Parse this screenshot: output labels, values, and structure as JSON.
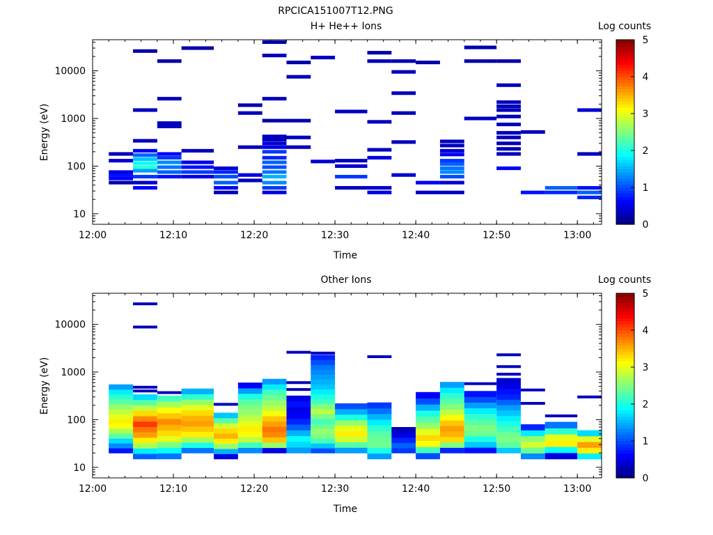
{
  "page_title": "RPCICA151007T12.PNG",
  "colors": {
    "axis": "#000000",
    "background": "#ffffff"
  },
  "chart_data": [
    {
      "type": "heatmap",
      "title": "H+ He++ Ions",
      "xlabel": "Time",
      "ylabel": "Energy (eV)",
      "colorbar": {
        "label": "Log counts",
        "min": 0,
        "max": 5,
        "ticks": [
          "0",
          "1",
          "2",
          "3",
          "4",
          "5"
        ],
        "colormap": "jet"
      },
      "x_range": [
        "12:00",
        "13:03"
      ],
      "x_ticks": [
        "12:00",
        "12:10",
        "12:20",
        "12:30",
        "12:40",
        "12:50",
        "13:00"
      ],
      "y_scale": "log",
      "y_range": [
        6,
        45000
      ],
      "y_ticks": [
        "10",
        "100",
        "1000",
        "10000"
      ],
      "time_bins": [
        [
          "12:02",
          "12:05"
        ],
        [
          "12:05",
          "12:08"
        ],
        [
          "12:08",
          "12:11"
        ],
        [
          "12:11",
          "12:15"
        ],
        [
          "12:15",
          "12:18"
        ],
        [
          "12:18",
          "12:21"
        ],
        [
          "12:21",
          "12:24"
        ],
        [
          "12:24",
          "12:27"
        ],
        [
          "12:27",
          "12:30"
        ],
        [
          "12:30",
          "12:34"
        ],
        [
          "12:34",
          "12:37"
        ],
        [
          "12:37",
          "12:40"
        ],
        [
          "12:40",
          "12:43"
        ],
        [
          "12:43",
          "12:46"
        ],
        [
          "12:46",
          "12:50"
        ],
        [
          "12:50",
          "12:53"
        ],
        [
          "12:53",
          "12:56"
        ],
        [
          "12:56",
          "13:00"
        ],
        [
          "13:00",
          "13:03"
        ]
      ],
      "cells": [
        [
          0,
          45,
          0.2
        ],
        [
          0,
          55,
          0.6
        ],
        [
          0,
          65,
          0.7
        ],
        [
          0,
          75,
          0.5
        ],
        [
          0,
          130,
          0.4
        ],
        [
          0,
          180,
          0.3
        ],
        [
          1,
          35,
          0.6
        ],
        [
          1,
          45,
          0.4
        ],
        [
          1,
          60,
          0.9
        ],
        [
          1,
          80,
          1.4
        ],
        [
          1,
          95,
          2.1
        ],
        [
          1,
          115,
          1.9
        ],
        [
          1,
          140,
          1.6
        ],
        [
          1,
          170,
          1.1
        ],
        [
          1,
          210,
          0.6
        ],
        [
          1,
          340,
          0.3
        ],
        [
          1,
          1500,
          0.3
        ],
        [
          1,
          26000,
          0.2
        ],
        [
          2,
          60,
          0.7
        ],
        [
          2,
          75,
          1.1
        ],
        [
          2,
          95,
          1.2
        ],
        [
          2,
          120,
          1.3
        ],
        [
          2,
          150,
          0.9
        ],
        [
          2,
          180,
          0.6
        ],
        [
          2,
          680,
          0.3
        ],
        [
          2,
          800,
          0.3
        ],
        [
          2,
          2600,
          0.3
        ],
        [
          2,
          16000,
          0.2
        ],
        [
          3,
          60,
          0.5
        ],
        [
          3,
          75,
          0.9
        ],
        [
          3,
          95,
          0.7
        ],
        [
          3,
          120,
          0.5
        ],
        [
          3,
          210,
          0.3
        ],
        [
          3,
          30000,
          0.2
        ],
        [
          4,
          28,
          0.3
        ],
        [
          4,
          35,
          0.6
        ],
        [
          4,
          45,
          1.1
        ],
        [
          4,
          60,
          1.0
        ],
        [
          4,
          75,
          0.8
        ],
        [
          4,
          90,
          0.4
        ],
        [
          5,
          50,
          0.3
        ],
        [
          5,
          65,
          0.5
        ],
        [
          5,
          250,
          0.3
        ],
        [
          5,
          1300,
          0.3
        ],
        [
          5,
          1900,
          0.2
        ],
        [
          6,
          28,
          0.5
        ],
        [
          6,
          35,
          0.9
        ],
        [
          6,
          45,
          1.3
        ],
        [
          6,
          60,
          1.5
        ],
        [
          6,
          75,
          1.2
        ],
        [
          6,
          95,
          1.0
        ],
        [
          6,
          120,
          1.1
        ],
        [
          6,
          150,
          0.8
        ],
        [
          6,
          200,
          0.9
        ],
        [
          6,
          250,
          0.5
        ],
        [
          6,
          300,
          0.4
        ],
        [
          6,
          360,
          0.3
        ],
        [
          6,
          420,
          0.3
        ],
        [
          6,
          900,
          0.2
        ],
        [
          6,
          2600,
          0.3
        ],
        [
          6,
          21000,
          0.3
        ],
        [
          6,
          40000,
          0.2
        ],
        [
          7,
          250,
          0.3
        ],
        [
          7,
          400,
          0.3
        ],
        [
          7,
          900,
          0.2
        ],
        [
          7,
          7500,
          0.3
        ],
        [
          7,
          15000,
          0.2
        ],
        [
          8,
          125,
          0.4
        ],
        [
          8,
          19000,
          0.3
        ],
        [
          9,
          35,
          0.3
        ],
        [
          9,
          60,
          0.9
        ],
        [
          9,
          100,
          0.4
        ],
        [
          9,
          130,
          0.3
        ],
        [
          9,
          1400,
          0.3
        ],
        [
          10,
          28,
          0.5
        ],
        [
          10,
          35,
          0.4
        ],
        [
          10,
          150,
          0.5
        ],
        [
          10,
          220,
          0.3
        ],
        [
          10,
          850,
          0.3
        ],
        [
          10,
          16000,
          0.3
        ],
        [
          10,
          24000,
          0.2
        ],
        [
          11,
          65,
          0.4
        ],
        [
          11,
          320,
          0.3
        ],
        [
          11,
          1300,
          0.3
        ],
        [
          11,
          3400,
          0.3
        ],
        [
          11,
          9500,
          0.3
        ],
        [
          11,
          16000,
          0.3
        ],
        [
          12,
          28,
          0.3
        ],
        [
          12,
          45,
          0.6
        ],
        [
          12,
          15000,
          0.2
        ],
        [
          13,
          28,
          0.3
        ],
        [
          13,
          45,
          0.4
        ],
        [
          13,
          60,
          1.0
        ],
        [
          13,
          75,
          1.3
        ],
        [
          13,
          90,
          1.2
        ],
        [
          13,
          110,
          1.1
        ],
        [
          13,
          130,
          0.9
        ],
        [
          13,
          175,
          0.6
        ],
        [
          13,
          210,
          0.4
        ],
        [
          13,
          270,
          0.3
        ],
        [
          13,
          330,
          0.3
        ],
        [
          14,
          1000,
          0.3
        ],
        [
          14,
          16000,
          0.2
        ],
        [
          14,
          31000,
          0.2
        ],
        [
          15,
          90,
          0.6
        ],
        [
          15,
          180,
          0.3
        ],
        [
          15,
          230,
          0.3
        ],
        [
          15,
          300,
          0.3
        ],
        [
          15,
          400,
          0.3
        ],
        [
          15,
          500,
          0.3
        ],
        [
          15,
          750,
          0.3
        ],
        [
          15,
          1100,
          0.3
        ],
        [
          15,
          1500,
          0.3
        ],
        [
          15,
          1800,
          0.3
        ],
        [
          15,
          2200,
          0.3
        ],
        [
          15,
          5000,
          0.3
        ],
        [
          15,
          16000,
          0.2
        ],
        [
          16,
          28,
          0.7
        ],
        [
          16,
          520,
          0.3
        ],
        [
          17,
          28,
          0.8
        ],
        [
          17,
          35,
          1.1
        ],
        [
          18,
          22,
          0.8
        ],
        [
          18,
          28,
          1.1
        ],
        [
          18,
          35,
          0.7
        ],
        [
          18,
          180,
          0.3
        ],
        [
          18,
          1500,
          0.4
        ]
      ]
    },
    {
      "type": "heatmap",
      "title": "Other Ions",
      "xlabel": "Time",
      "ylabel": "Energy (eV)",
      "colorbar": {
        "label": "Log counts",
        "min": 0,
        "max": 5,
        "ticks": [
          "0",
          "1",
          "2",
          "3",
          "4",
          "5"
        ],
        "colormap": "jet"
      },
      "x_range": [
        "12:00",
        "13:03"
      ],
      "x_ticks": [
        "12:00",
        "12:10",
        "12:20",
        "12:30",
        "12:40",
        "12:50",
        "13:00"
      ],
      "y_scale": "log",
      "y_range": [
        6,
        45000
      ],
      "y_ticks": [
        "10",
        "100",
        "1000",
        "10000"
      ],
      "time_bins": [
        [
          "12:02",
          "12:05"
        ],
        [
          "12:05",
          "12:08"
        ],
        [
          "12:08",
          "12:11"
        ],
        [
          "12:11",
          "12:15"
        ],
        [
          "12:15",
          "12:18"
        ],
        [
          "12:18",
          "12:21"
        ],
        [
          "12:21",
          "12:24"
        ],
        [
          "12:24",
          "12:27"
        ],
        [
          "12:27",
          "12:30"
        ],
        [
          "12:30",
          "12:34"
        ],
        [
          "12:34",
          "12:37"
        ],
        [
          "12:37",
          "12:40"
        ],
        [
          "12:40",
          "12:43"
        ],
        [
          "12:43",
          "12:46"
        ],
        [
          "12:46",
          "12:50"
        ],
        [
          "12:50",
          "12:53"
        ],
        [
          "12:53",
          "12:56"
        ],
        [
          "12:56",
          "13:00"
        ],
        [
          "13:00",
          "13:03"
        ]
      ],
      "columns": [
        {
          "bin": 0,
          "low": 20,
          "high": 550,
          "levels": [
            0.7,
            1.3,
            1.7,
            2.3,
            2.7,
            3.1,
            3.2,
            3.0,
            2.8,
            2.6,
            2.3,
            2.1,
            1.8,
            1.4
          ],
          "sparse": []
        },
        {
          "bin": 1,
          "low": 15,
          "high": 340,
          "levels": [
            1.1,
            1.8,
            2.7,
            3.2,
            3.6,
            3.8,
            4.1,
            3.7,
            3.3,
            2.8,
            2.3,
            1.7
          ],
          "sparse": [
            400,
            480,
            8800,
            27000
          ]
        },
        {
          "bin": 2,
          "low": 15,
          "high": 320,
          "levels": [
            1.2,
            1.9,
            2.5,
            3.0,
            3.3,
            3.5,
            3.7,
            3.4,
            3.1,
            2.7,
            2.2
          ],
          "sparse": [
            370
          ]
        },
        {
          "bin": 3,
          "low": 20,
          "high": 450,
          "levels": [
            1.2,
            2.0,
            2.7,
            3.2,
            3.4,
            3.6,
            3.5,
            3.3,
            3.0,
            2.6,
            2.1,
            1.5
          ],
          "sparse": []
        },
        {
          "bin": 4,
          "low": 15,
          "high": 140,
          "levels": [
            0.5,
            1.5,
            2.6,
            3.2,
            3.5,
            3.3,
            2.9,
            2.3,
            1.6
          ],
          "sparse": [
            210
          ]
        },
        {
          "bin": 5,
          "low": 20,
          "high": 600,
          "levels": [
            1.3,
            2.2,
            2.8,
            3.1,
            3.2,
            3.0,
            2.8,
            2.6,
            2.5,
            2.3,
            2.0,
            1.4,
            0.6
          ],
          "sparse": []
        },
        {
          "bin": 6,
          "low": 20,
          "high": 720,
          "levels": [
            0.5,
            2.6,
            3.4,
            3.7,
            3.8,
            3.6,
            3.4,
            3.1,
            2.8,
            2.6,
            2.4,
            2.2,
            1.8,
            1.4
          ],
          "sparse": []
        },
        {
          "bin": 7,
          "low": 20,
          "high": 320,
          "levels": [
            1.4,
            1.7,
            1.9,
            1.5,
            1.1,
            0.8,
            0.6,
            0.5,
            0.7,
            0.5
          ],
          "sparse": [
            430,
            600,
            2600
          ]
        },
        {
          "bin": 8,
          "low": 20,
          "high": 2300,
          "levels": [
            1.0,
            1.6,
            2.2,
            2.5,
            2.6,
            2.4,
            2.2,
            2.5,
            2.8,
            2.5,
            2.2,
            2.0,
            1.8,
            1.6,
            1.5,
            1.4,
            1.3,
            1.2,
            1.0,
            0.8
          ],
          "sparse": [
            2500
          ]
        },
        {
          "bin": 9,
          "low": 20,
          "high": 220,
          "levels": [
            1.4,
            2.3,
            2.9,
            3.2,
            3.0,
            2.6,
            2.0,
            1.5,
            1.0
          ],
          "sparse": []
        },
        {
          "bin": 10,
          "low": 15,
          "high": 230,
          "levels": [
            1.4,
            2.0,
            2.4,
            2.4,
            2.3,
            2.1,
            1.8,
            1.5,
            1.2,
            0.9
          ],
          "sparse": [
            2100
          ]
        },
        {
          "bin": 11,
          "low": 20,
          "high": 70,
          "levels": [
            0.9,
            1.1,
            0.8,
            0.5,
            0.3
          ],
          "sparse": []
        },
        {
          "bin": 12,
          "low": 15,
          "high": 380,
          "levels": [
            1.0,
            2.2,
            3.1,
            3.3,
            3.0,
            2.6,
            2.3,
            2.0,
            1.5,
            1.0,
            0.6
          ],
          "sparse": []
        },
        {
          "bin": 13,
          "low": 20,
          "high": 620,
          "levels": [
            0.8,
            2.5,
            3.3,
            3.5,
            3.6,
            3.4,
            3.1,
            2.8,
            2.5,
            2.3,
            2.1,
            1.8,
            1.4
          ],
          "sparse": []
        },
        {
          "bin": 14,
          "low": 20,
          "high": 400,
          "levels": [
            0.7,
            1.6,
            2.0,
            2.4,
            2.5,
            2.3,
            2.1,
            1.8,
            1.4,
            1.0,
            0.7
          ],
          "sparse": [
            570
          ]
        },
        {
          "bin": 15,
          "low": 20,
          "high": 750,
          "levels": [
            1.6,
            2.3,
            2.5,
            2.4,
            2.2,
            2.0,
            1.8,
            1.6,
            1.4,
            1.1,
            0.8,
            0.7,
            0.5,
            0.4
          ],
          "sparse": [
            900,
            1300,
            2300
          ]
        },
        {
          "bin": 16,
          "low": 15,
          "high": 80,
          "levels": [
            1.3,
            2.4,
            2.9,
            2.6,
            1.8,
            0.8
          ],
          "sparse": [
            220,
            420
          ]
        },
        {
          "bin": 17,
          "low": 15,
          "high": 90,
          "levels": [
            0.5,
            1.9,
            3.2,
            3.0,
            2.1,
            1.2
          ],
          "sparse": [
            120
          ]
        },
        {
          "bin": 18,
          "low": 15,
          "high": 60,
          "levels": [
            1.8,
            3.2,
            3.6,
            3.0,
            1.7
          ],
          "sparse": [
            300
          ]
        }
      ]
    }
  ]
}
